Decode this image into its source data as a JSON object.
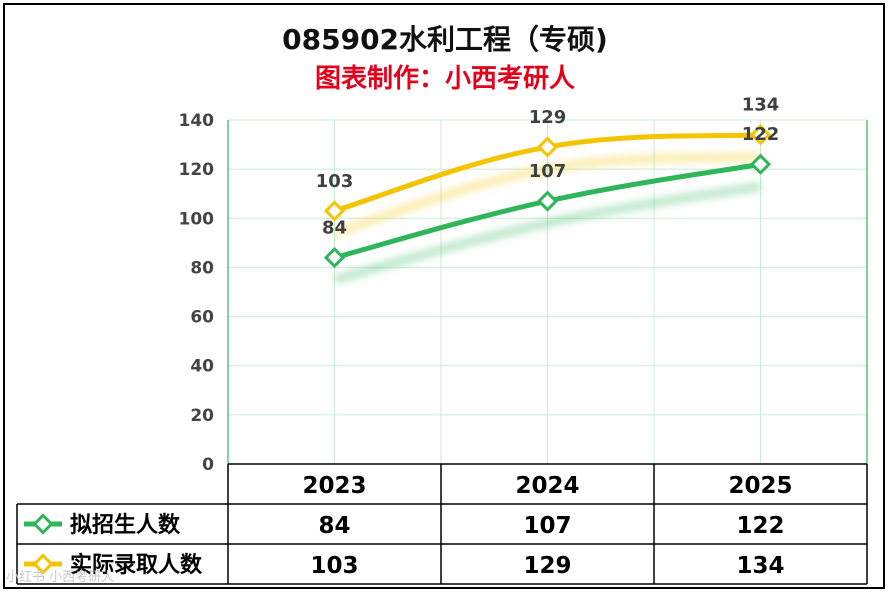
{
  "title": "085902水利工程（专硕)",
  "subtitle": "图表制作：小西考研人",
  "watermark": "小红书 小西考研人",
  "chart_data": {
    "type": "line",
    "title": "085902水利工程（专硕)",
    "subtitle": "图表制作：小西考研人",
    "categories": [
      "2023",
      "2024",
      "2025"
    ],
    "ylim": [
      0,
      140
    ],
    "yticks": [
      0,
      20,
      40,
      60,
      80,
      100,
      120,
      140
    ],
    "grid": true,
    "legend": "data-table-left",
    "series": [
      {
        "name": "拟招生人数",
        "values": [
          84,
          107,
          122
        ],
        "color": "#2fb55a"
      },
      {
        "name": "实际录取人数",
        "values": [
          103,
          129,
          134
        ],
        "color": "#f5c400"
      }
    ]
  }
}
